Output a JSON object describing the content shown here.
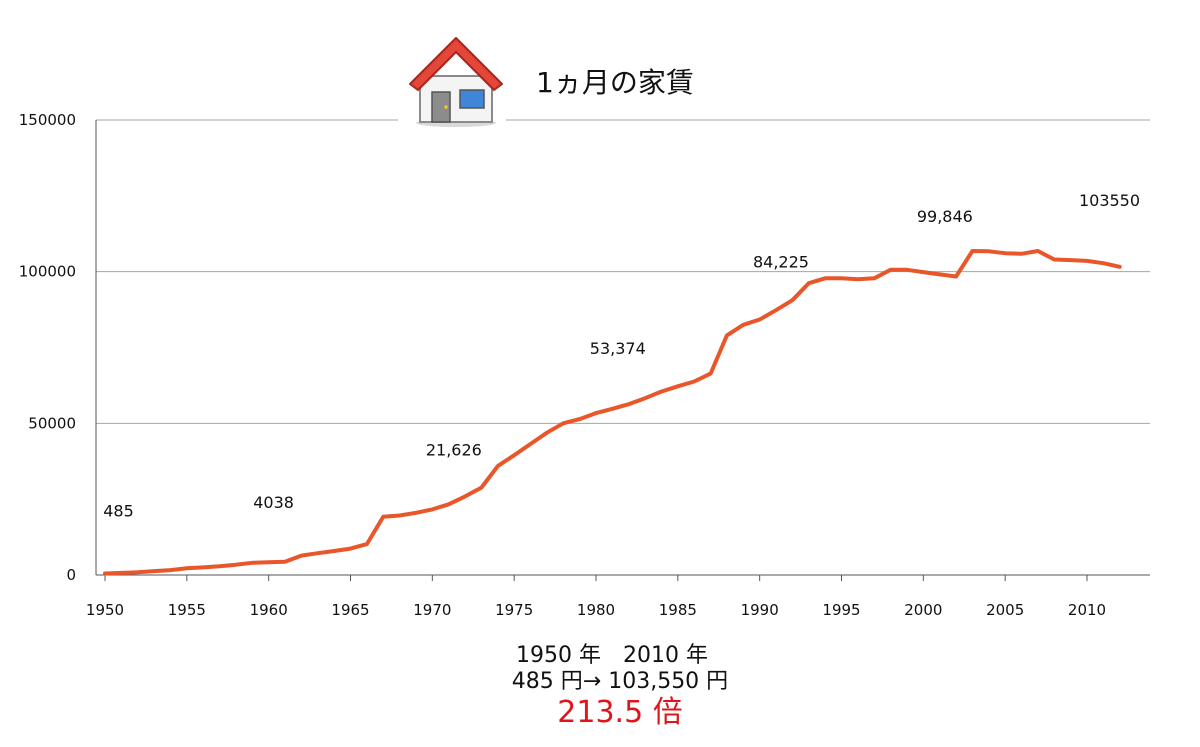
{
  "title": "1ヵ月の家賃",
  "title_icon": "house-icon",
  "chart_data": {
    "type": "line",
    "title": "1ヵ月の家賃",
    "xlabel": "",
    "ylabel": "",
    "xlim": [
      1950,
      2013
    ],
    "ylim": [
      0,
      150000
    ],
    "x_ticks": [
      1950,
      1955,
      1960,
      1965,
      1970,
      1975,
      1980,
      1985,
      1990,
      1995,
      2000,
      2005,
      2010
    ],
    "y_ticks": [
      0,
      50000,
      100000,
      150000
    ],
    "grid": "horizontal",
    "legend": "none",
    "line_color": "#e8562a",
    "series": [
      {
        "name": "",
        "x": [
          1950,
          1951,
          1952,
          1953,
          1954,
          1955,
          1956,
          1957,
          1958,
          1959,
          1960,
          1961,
          1962,
          1963,
          1964,
          1965,
          1966,
          1967,
          1968,
          1969,
          1970,
          1971,
          1972,
          1973,
          1974,
          1975,
          1976,
          1977,
          1978,
          1979,
          1980,
          1981,
          1982,
          1983,
          1984,
          1985,
          1986,
          1987,
          1988,
          1989,
          1990,
          1991,
          1992,
          1993,
          1994,
          1995,
          1996,
          1997,
          1998,
          1999,
          2000,
          2001,
          2002,
          2003,
          2004,
          2005,
          2006,
          2007,
          2008,
          2009,
          2010,
          2011,
          2012
        ],
        "y": [
          485,
          700,
          900,
          1300,
          1600,
          2200,
          2500,
          2900,
          3400,
          4038,
          4200,
          4400,
          6400,
          7200,
          7900,
          8700,
          10200,
          19200,
          19600,
          20500,
          21626,
          23300,
          25900,
          28800,
          35900,
          39500,
          43200,
          46900,
          50000,
          51400,
          53374,
          54800,
          56300,
          58300,
          60500,
          62200,
          63800,
          66400,
          79000,
          82500,
          84225,
          87300,
          90600,
          96200,
          97800,
          97800,
          97500,
          97800,
          100600,
          100600,
          99846,
          99100,
          98400,
          106800,
          106700,
          106100,
          105900,
          106800,
          104000,
          103800,
          103550,
          102800,
          101600
        ]
      }
    ],
    "annotations": [
      {
        "x": 1950,
        "y": 485,
        "text": "485"
      },
      {
        "x": 1959,
        "y": 4038,
        "text": "4038"
      },
      {
        "x": 1970,
        "y": 21626,
        "text": "21,626"
      },
      {
        "x": 1980,
        "y": 53374,
        "text": "53,374"
      },
      {
        "x": 1990,
        "y": 84225,
        "text": "84,225"
      },
      {
        "x": 2000,
        "y": 99846,
        "text": "99,846"
      },
      {
        "x": 2010,
        "y": 103550,
        "text": "103550"
      }
    ]
  },
  "summary": {
    "line1": "1950 年　2010 年",
    "line2": "485 円→ 103,550 円",
    "ratio": "213.5 倍",
    "ratio_color": "#e0151b"
  }
}
